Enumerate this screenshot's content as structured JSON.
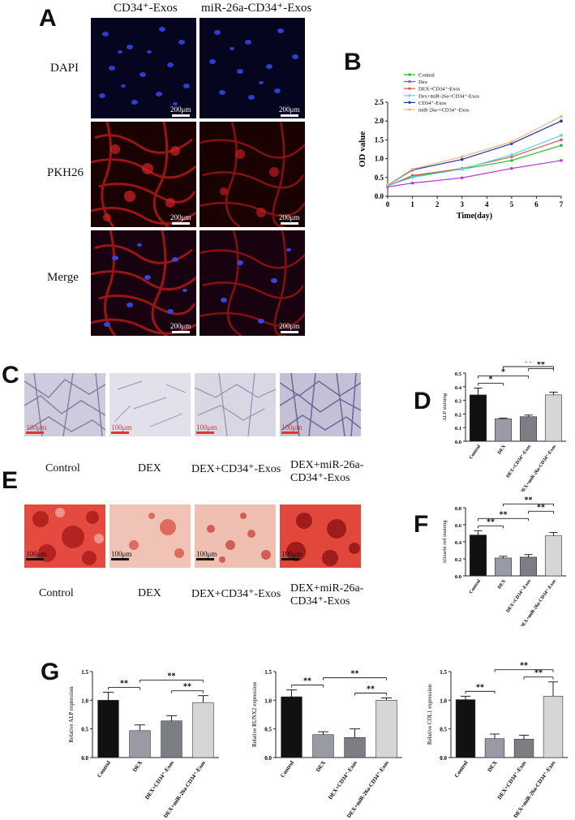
{
  "panel_labels": {
    "a": "A",
    "b": "B",
    "c": "C",
    "d": "D",
    "e": "E",
    "f": "F",
    "g": "G"
  },
  "panel_a": {
    "columns": [
      "CD34⁺-Exos",
      "miR-26a-CD34⁺-Exos"
    ],
    "rows": [
      "DAPI",
      "PKH26",
      "Merge"
    ],
    "scale": "200μm"
  },
  "panel_c": {
    "labels": [
      "Control",
      "DEX",
      "DEX+CD34⁺-Exos",
      "DEX+miR-26a-\nCD34⁺-Exos"
    ],
    "scale": "100μm"
  },
  "panel_e": {
    "labels": [
      "Control",
      "DEX",
      "DEX+CD34⁺-Exos",
      "DEX+miR-26a-\nCD34⁺-Exos"
    ],
    "scale": "100μm"
  },
  "colors": {
    "dapi": "#1a1a7a",
    "pkh": "#7a0a0a",
    "alp": "#b9b7cf",
    "alizarin": "#d9302c",
    "bar_black": "#111111",
    "bar_gray1": "#9a9aa6",
    "bar_gray2": "#7d7d84",
    "bar_light": "#d6d6d6"
  },
  "chart_data": [
    {
      "id": "B",
      "type": "line",
      "xlabel": "Time(day)",
      "ylabel": "OD value",
      "xlim": [
        0,
        7
      ],
      "ylim": [
        0,
        2.5
      ],
      "xticks": [
        "0",
        "1",
        "2",
        "3",
        "4",
        "5",
        "6",
        "7"
      ],
      "yticks": [
        "0.0",
        "0.5",
        "1.0",
        "1.5",
        "2.0",
        "2.5"
      ],
      "legend_position": "top-left",
      "x": [
        0,
        1,
        3,
        5,
        7
      ],
      "series": [
        {
          "name": "Control",
          "color": "#22bb33",
          "values": [
            0.28,
            0.53,
            0.72,
            0.95,
            1.35
          ]
        },
        {
          "name": "Dex",
          "color": "#b23ccc",
          "values": [
            0.25,
            0.35,
            0.49,
            0.74,
            0.95
          ]
        },
        {
          "name": "DEX+CD34⁺-Exos",
          "color": "#e0554b",
          "values": [
            0.27,
            0.55,
            0.74,
            1.05,
            1.5
          ]
        },
        {
          "name": "Dex+miR-26a+CD34⁺-Exos",
          "color": "#58d8e0",
          "values": [
            0.28,
            0.5,
            0.72,
            1.1,
            1.62
          ]
        },
        {
          "name": "CD34⁺-Exos",
          "color": "#2233aa",
          "values": [
            0.29,
            0.7,
            0.98,
            1.4,
            2.0
          ]
        },
        {
          "name": "miR-26a-+CD34⁺-Exos",
          "color": "#f5b27a",
          "values": [
            0.3,
            0.72,
            1.05,
            1.45,
            2.12
          ]
        }
      ]
    },
    {
      "id": "D",
      "type": "bar",
      "ylabel": "ALP staining",
      "ylim": [
        0,
        0.5
      ],
      "yticks": [
        "0.0",
        "0.1",
        "0.2",
        "0.3",
        "0.4",
        "0.5"
      ],
      "categories": [
        "Control",
        "DEX",
        "DEX+CD34⁺-Exos",
        "DEX+miR-26a-CD34⁺-Exos"
      ],
      "values": [
        0.34,
        0.165,
        0.18,
        0.34
      ],
      "errors": [
        0.05,
        0.005,
        0.012,
        0.02
      ],
      "significance": [
        [
          "0",
          "1",
          "*"
        ],
        [
          "0",
          "2",
          "*"
        ],
        [
          "2",
          "3",
          "**"
        ],
        [
          "1",
          "3",
          "**"
        ]
      ]
    },
    {
      "id": "F",
      "type": "bar",
      "ylabel": "Alizarin red staining",
      "ylim": [
        0,
        0.8
      ],
      "yticks": [
        "0.0",
        "0.2",
        "0.4",
        "0.6",
        "0.8"
      ],
      "categories": [
        "Control",
        "DEX",
        "DEX+CD34⁺-Exos",
        "DEX+miR-26a-CD34⁺-Exos"
      ],
      "values": [
        0.48,
        0.21,
        0.22,
        0.47
      ],
      "errors": [
        0.05,
        0.02,
        0.03,
        0.04
      ],
      "significance": [
        [
          "0",
          "1",
          "**"
        ],
        [
          "0",
          "2",
          "**"
        ],
        [
          "2",
          "3",
          "**"
        ],
        [
          "1",
          "3",
          "**"
        ]
      ]
    },
    {
      "id": "G1",
      "type": "bar",
      "ylabel": "Relative ALP expression",
      "ylim": [
        0,
        1.5
      ],
      "yticks": [
        "0.0",
        "0.5",
        "1.0",
        "1.5"
      ],
      "categories": [
        "Control",
        "DEX",
        "DEX+CD34⁺-Exos",
        "DEX+miR-26a-CD34⁺-Exos"
      ],
      "values": [
        1.0,
        0.47,
        0.64,
        0.96
      ],
      "errors": [
        0.14,
        0.1,
        0.09,
        0.12
      ],
      "significance": [
        [
          "0",
          "1",
          "**"
        ],
        [
          "2",
          "3",
          "**"
        ],
        [
          "1",
          "3",
          "**"
        ]
      ]
    },
    {
      "id": "G2",
      "type": "bar",
      "ylabel": "Relative RUNX2 expression",
      "ylim": [
        0,
        1.5
      ],
      "yticks": [
        "0.0",
        "0.5",
        "1.0",
        "1.5"
      ],
      "categories": [
        "Control",
        "DEX",
        "DEX+CD34⁺-Exos",
        "DEX+miR-26a-CD34⁺-Exos"
      ],
      "values": [
        1.06,
        0.4,
        0.35,
        1.0
      ],
      "errors": [
        0.12,
        0.05,
        0.15,
        0.04
      ],
      "significance": [
        [
          "0",
          "1",
          "**"
        ],
        [
          "2",
          "3",
          "**"
        ],
        [
          "1",
          "3",
          "**"
        ]
      ]
    },
    {
      "id": "G3",
      "type": "bar",
      "ylabel": "Relative COL1 expression",
      "ylim": [
        0,
        1.5
      ],
      "yticks": [
        "0.0",
        "0.5",
        "1.0",
        "1.5"
      ],
      "categories": [
        "Control",
        "DEX",
        "DEX+CD34⁺-Exos",
        "DEX+miR-26a-CD34⁺-Exos"
      ],
      "values": [
        1.01,
        0.33,
        0.32,
        1.07
      ],
      "errors": [
        0.06,
        0.08,
        0.07,
        0.25
      ],
      "significance": [
        [
          "0",
          "1",
          "**"
        ],
        [
          "2",
          "3",
          "**"
        ],
        [
          "1",
          "3",
          "**"
        ]
      ]
    }
  ]
}
